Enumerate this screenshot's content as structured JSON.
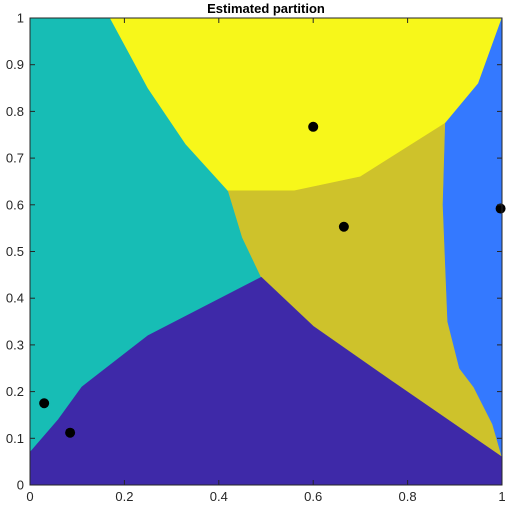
{
  "chart_data": {
    "type": "heatmap",
    "title": "Estimated partition",
    "xlabel": "",
    "ylabel": "",
    "xlim": [
      0,
      1
    ],
    "ylim": [
      0,
      1
    ],
    "x_ticks": [
      "0",
      "0.2",
      "0.4",
      "0.6",
      "0.8",
      "1"
    ],
    "y_ticks": [
      "0",
      "0.1",
      "0.2",
      "0.3",
      "0.4",
      "0.5",
      "0.6",
      "0.7",
      "0.8",
      "0.9",
      "1"
    ],
    "grid": false,
    "legend": "none",
    "regions": [
      {
        "id": "teal",
        "color": "#17bdb5",
        "polygon": [
          [
            0,
            1
          ],
          [
            0.17,
            1
          ],
          [
            0.25,
            0.85
          ],
          [
            0.33,
            0.73
          ],
          [
            0.42,
            0.63
          ],
          [
            0.45,
            0.53
          ],
          [
            0.49,
            0.445
          ],
          [
            0.25,
            0.32
          ],
          [
            0.11,
            0.21
          ],
          [
            0.06,
            0.14
          ],
          [
            0,
            0.07
          ]
        ]
      },
      {
        "id": "yellow",
        "color": "#f7f71a",
        "polygon": [
          [
            0.17,
            1
          ],
          [
            1,
            1
          ],
          [
            0.95,
            0.86
          ],
          [
            0.88,
            0.775
          ],
          [
            0.7,
            0.66
          ],
          [
            0.56,
            0.63
          ],
          [
            0.42,
            0.63
          ],
          [
            0.33,
            0.73
          ],
          [
            0.25,
            0.85
          ]
        ]
      },
      {
        "id": "olive",
        "color": "#cec22b",
        "polygon": [
          [
            0.42,
            0.63
          ],
          [
            0.56,
            0.63
          ],
          [
            0.7,
            0.66
          ],
          [
            0.88,
            0.775
          ],
          [
            0.875,
            0.6
          ],
          [
            0.885,
            0.35
          ],
          [
            0.91,
            0.25
          ],
          [
            0.94,
            0.21
          ],
          [
            0.98,
            0.13
          ],
          [
            1,
            0.06
          ],
          [
            0.77,
            0.22
          ],
          [
            0.6,
            0.34
          ],
          [
            0.49,
            0.445
          ],
          [
            0.45,
            0.53
          ]
        ]
      },
      {
        "id": "blue",
        "color": "#3479ff",
        "polygon": [
          [
            1,
            1
          ],
          [
            1,
            0.06
          ],
          [
            0.98,
            0.13
          ],
          [
            0.94,
            0.21
          ],
          [
            0.91,
            0.25
          ],
          [
            0.885,
            0.35
          ],
          [
            0.875,
            0.6
          ],
          [
            0.88,
            0.775
          ],
          [
            0.95,
            0.86
          ]
        ]
      },
      {
        "id": "indigo",
        "color": "#3e29a8",
        "polygon": [
          [
            0,
            0
          ],
          [
            1,
            0
          ],
          [
            1,
            0.06
          ],
          [
            0.77,
            0.22
          ],
          [
            0.6,
            0.34
          ],
          [
            0.49,
            0.445
          ],
          [
            0.25,
            0.32
          ],
          [
            0.11,
            0.21
          ],
          [
            0.06,
            0.14
          ],
          [
            0,
            0.07
          ]
        ]
      }
    ],
    "points": [
      {
        "x": 0.03,
        "y": 0.175
      },
      {
        "x": 0.085,
        "y": 0.112
      },
      {
        "x": 0.6,
        "y": 0.767
      },
      {
        "x": 0.665,
        "y": 0.553
      },
      {
        "x": 0.997,
        "y": 0.592
      }
    ],
    "point_color": "#000000"
  }
}
